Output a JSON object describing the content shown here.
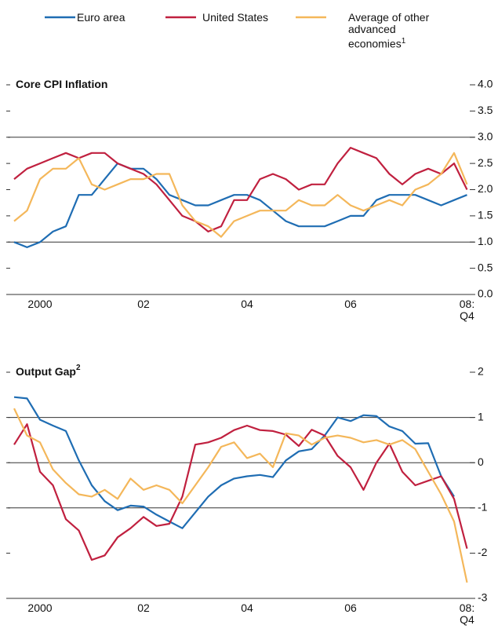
{
  "chart_data": [
    {
      "type": "line",
      "title": "Core CPI Inflation",
      "categories": [
        null,
        null,
        "2000",
        null,
        null,
        null,
        null,
        null,
        null,
        null,
        "02",
        null,
        null,
        null,
        null,
        null,
        null,
        null,
        "04",
        null,
        null,
        null,
        null,
        null,
        null,
        null,
        "06",
        null,
        null,
        null,
        null,
        null,
        null,
        null,
        null,
        "08: Q4"
      ],
      "series": [
        {
          "name": "Euro area",
          "color": "#1f6db3",
          "values": [
            1.0,
            0.9,
            1.0,
            1.2,
            1.3,
            1.9,
            1.9,
            2.2,
            2.5,
            2.4,
            2.4,
            2.2,
            1.9,
            1.8,
            1.7,
            1.7,
            1.8,
            1.9,
            1.9,
            1.8,
            1.6,
            1.4,
            1.3,
            1.3,
            1.3,
            1.4,
            1.5,
            1.5,
            1.8,
            1.9,
            1.9,
            1.9,
            1.8,
            1.7,
            1.8,
            1.9
          ]
        },
        {
          "name": "United States",
          "color": "#c0203f",
          "values": [
            2.2,
            2.4,
            2.5,
            2.6,
            2.7,
            2.6,
            2.7,
            2.7,
            2.5,
            2.4,
            2.3,
            2.1,
            1.8,
            1.5,
            1.4,
            1.2,
            1.3,
            1.8,
            1.8,
            2.2,
            2.3,
            2.2,
            2.0,
            2.1,
            2.1,
            2.5,
            2.8,
            2.7,
            2.6,
            2.3,
            2.1,
            2.3,
            2.4,
            2.3,
            2.5,
            2.0
          ]
        },
        {
          "name": "Average of other advanced economies",
          "name_note": "1",
          "color": "#f4b75a",
          "values": [
            1.4,
            1.6,
            2.2,
            2.4,
            2.4,
            2.6,
            2.1,
            2.0,
            2.1,
            2.2,
            2.2,
            2.3,
            2.3,
            1.7,
            1.4,
            1.3,
            1.1,
            1.4,
            1.5,
            1.6,
            1.6,
            1.6,
            1.8,
            1.7,
            1.7,
            1.9,
            1.7,
            1.6,
            1.7,
            1.8,
            1.7,
            2.0,
            2.1,
            2.3,
            2.7,
            2.1
          ]
        }
      ],
      "ylim": [
        0,
        4
      ],
      "yticks": [
        {
          "value": 0,
          "label": "0.0"
        },
        {
          "value": 0.5,
          "label": "0.5"
        },
        {
          "value": 1,
          "label": "1.0"
        },
        {
          "value": 1.5,
          "label": "1.5"
        },
        {
          "value": 2,
          "label": "2.0"
        },
        {
          "value": 2.5,
          "label": "2.5"
        },
        {
          "value": 3,
          "label": "3.0"
        },
        {
          "value": 3.5,
          "label": "3.5"
        },
        {
          "value": 4,
          "label": "4.0"
        }
      ],
      "gridlines": [
        1,
        3
      ]
    },
    {
      "type": "line",
      "title": "Output Gap",
      "title_note": "2",
      "categories": [
        null,
        null,
        "2000",
        null,
        null,
        null,
        null,
        null,
        null,
        null,
        "02",
        null,
        null,
        null,
        null,
        null,
        null,
        null,
        "04",
        null,
        null,
        null,
        null,
        null,
        null,
        null,
        "06",
        null,
        null,
        null,
        null,
        null,
        null,
        null,
        null,
        "08: Q4"
      ],
      "series": [
        {
          "color": "#1f6db3",
          "values": [
            1.45,
            1.42,
            0.95,
            0.82,
            0.7,
            0.05,
            -0.5,
            -0.85,
            -1.05,
            -0.95,
            -0.97,
            -1.15,
            -1.3,
            -1.45,
            -1.1,
            -0.75,
            -0.5,
            -0.35,
            -0.3,
            -0.27,
            -0.32,
            0.05,
            0.25,
            0.3,
            0.6,
            1.0,
            0.92,
            1.05,
            1.03,
            0.8,
            0.7,
            0.42,
            0.43,
            -0.3,
            -0.75,
            null
          ]
        },
        {
          "color": "#c0203f",
          "values": [
            0.4,
            0.85,
            -0.2,
            -0.5,
            -1.25,
            -1.5,
            -2.15,
            -2.05,
            -1.65,
            -1.45,
            -1.2,
            -1.4,
            -1.35,
            -0.75,
            0.4,
            0.45,
            0.55,
            0.72,
            0.82,
            0.72,
            0.7,
            0.62,
            0.37,
            0.73,
            0.6,
            0.15,
            -0.1,
            -0.6,
            0.0,
            0.42,
            -0.2,
            -0.5,
            -0.4,
            -0.3,
            -0.8,
            -1.9
          ]
        },
        {
          "color": "#f4b75a",
          "values": [
            1.2,
            0.6,
            0.45,
            -0.15,
            -0.45,
            -0.7,
            -0.75,
            -0.6,
            -0.8,
            -0.35,
            -0.6,
            -0.5,
            -0.6,
            -0.9,
            -0.5,
            -0.1,
            0.35,
            0.45,
            0.1,
            0.2,
            -0.1,
            0.65,
            0.6,
            0.4,
            0.55,
            0.6,
            0.55,
            0.45,
            0.5,
            0.4,
            0.5,
            0.3,
            -0.2,
            -0.7,
            -1.3,
            -2.65
          ]
        }
      ],
      "ylim": [
        -3,
        2
      ],
      "yticks": [
        -3,
        -2,
        -1,
        0,
        1,
        2
      ],
      "gridlines": [
        -1,
        0,
        1
      ]
    }
  ]
}
